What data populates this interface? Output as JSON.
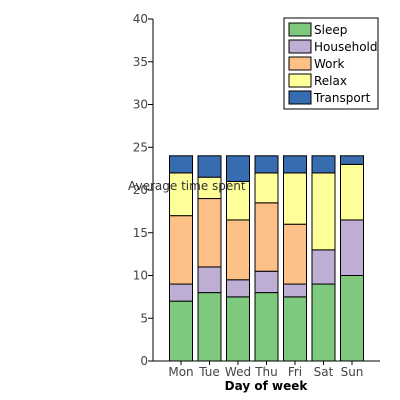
{
  "chart_data": {
    "type": "bar",
    "stacked": true,
    "categories": [
      "Mon",
      "Tue",
      "Wed",
      "Thu",
      "Fri",
      "Sat",
      "Sun"
    ],
    "series": [
      {
        "name": "Sleep",
        "color": "#7fc97f",
        "values": [
          7,
          8,
          7.5,
          8,
          7.5,
          9,
          10
        ]
      },
      {
        "name": "Household",
        "color": "#beaed4",
        "values": [
          2,
          3,
          2,
          2.5,
          1.5,
          4,
          6.5
        ]
      },
      {
        "name": "Work",
        "color": "#fdc086",
        "values": [
          8,
          8,
          7,
          8,
          7,
          0,
          0
        ]
      },
      {
        "name": "Relax",
        "color": "#ffff99",
        "values": [
          5,
          2.5,
          4.5,
          3.5,
          6,
          9,
          6.5
        ]
      },
      {
        "name": "Transport",
        "color": "#386cb0",
        "values": [
          2,
          2.5,
          3,
          2,
          2,
          2,
          1
        ]
      }
    ],
    "yticks": [
      "0",
      "5",
      "10",
      "15",
      "20",
      "25",
      "30",
      "35",
      "40"
    ],
    "ylim": [
      0,
      40
    ],
    "xlabel": "Day of week",
    "ylabel": "Average time spent",
    "legend_position": "top-right",
    "grid": false
  }
}
